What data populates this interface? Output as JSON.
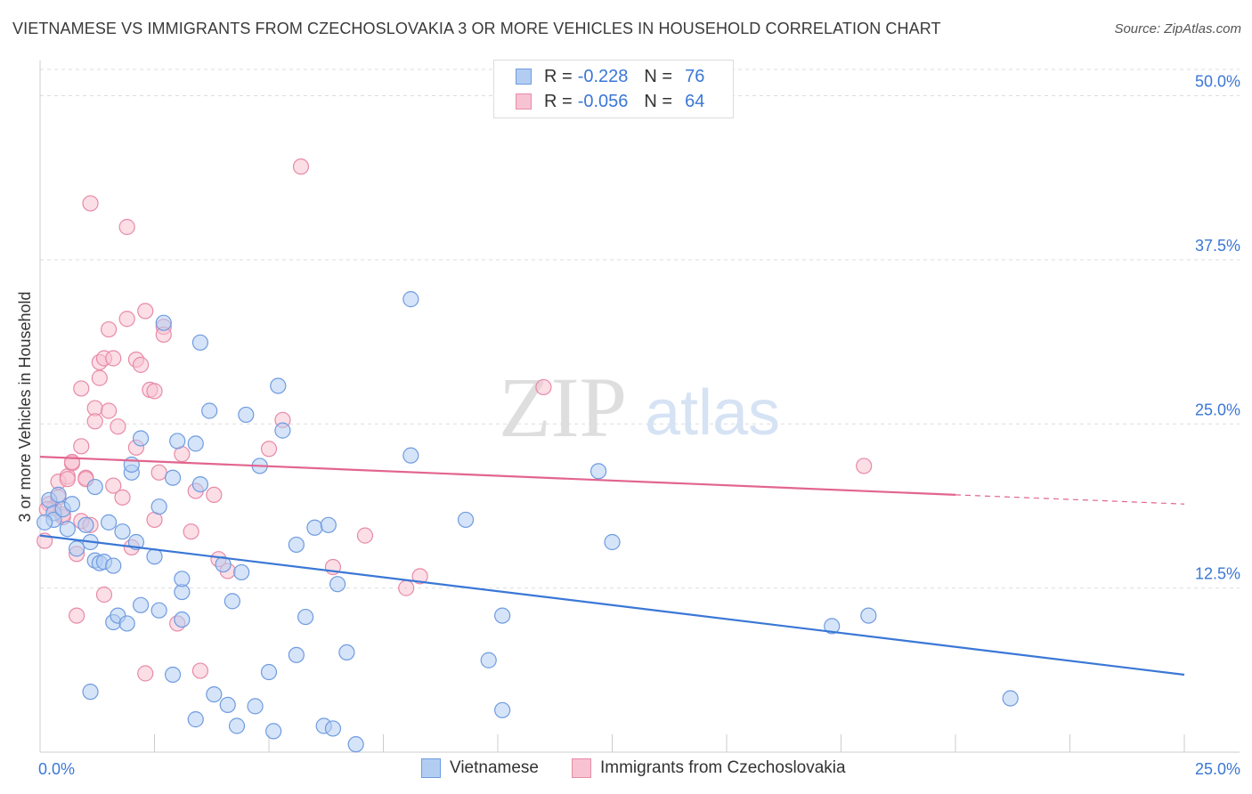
{
  "title": "VIETNAMESE VS IMMIGRANTS FROM CZECHOSLOVAKIA 3 OR MORE VEHICLES IN HOUSEHOLD CORRELATION CHART",
  "source": "Source: ZipAtlas.com",
  "watermark": {
    "zip": "ZIP",
    "atlas": "atlas"
  },
  "legend": {
    "rows": [
      {
        "r_label": "R =",
        "r_value": "-0.228",
        "n_label": "N =",
        "n_value": "76"
      },
      {
        "r_label": "R =",
        "r_value": "-0.056",
        "n_label": "N =",
        "n_value": "64"
      }
    ]
  },
  "colors": {
    "blue": "#3a77d6",
    "blue_fill": "#b3cdf2",
    "pink": "#e2658f",
    "pink_fill": "#f7c3d2",
    "grid": "#dddddd",
    "tick_label": "#3a77d6"
  },
  "chart_data": {
    "type": "scatter",
    "title": "VIETNAMESE VS IMMIGRANTS FROM CZECHOSLOVAKIA 3 OR MORE VEHICLES IN HOUSEHOLD CORRELATION CHART",
    "xlabel": "",
    "ylabel": "3 or more Vehicles in Household",
    "xlim": [
      0,
      25
    ],
    "ylim": [
      0,
      52
    ],
    "x_tick_labels": [
      "0.0%",
      "25.0%"
    ],
    "y_ticks": [
      12.5,
      25.0,
      37.5,
      50.0
    ],
    "y_tick_labels": [
      "12.5%",
      "25.0%",
      "37.5%",
      "50.0%"
    ],
    "series": [
      {
        "name": "Vietnamese",
        "color": "#3a77d6",
        "r": -0.228,
        "n": 76,
        "trend": {
          "x0": 0,
          "y0": 16.5,
          "x1": 25,
          "y1": 5.9
        },
        "points": [
          [
            0.2,
            19.2
          ],
          [
            0.3,
            18.2
          ],
          [
            0.3,
            17.7
          ],
          [
            0.4,
            19.6
          ],
          [
            0.5,
            18.5
          ],
          [
            0.6,
            17.0
          ],
          [
            0.7,
            18.9
          ],
          [
            0.8,
            15.5
          ],
          [
            1.0,
            17.3
          ],
          [
            1.1,
            4.6
          ],
          [
            1.1,
            16.0
          ],
          [
            1.2,
            14.6
          ],
          [
            1.2,
            20.2
          ],
          [
            1.3,
            14.4
          ],
          [
            1.4,
            14.5
          ],
          [
            1.5,
            17.5
          ],
          [
            1.6,
            14.2
          ],
          [
            1.6,
            9.9
          ],
          [
            1.7,
            10.4
          ],
          [
            1.8,
            16.8
          ],
          [
            1.9,
            9.8
          ],
          [
            2.0,
            21.3
          ],
          [
            2.0,
            21.9
          ],
          [
            2.1,
            16.0
          ],
          [
            2.2,
            11.2
          ],
          [
            2.2,
            23.9
          ],
          [
            2.5,
            14.9
          ],
          [
            2.6,
            10.8
          ],
          [
            2.6,
            18.7
          ],
          [
            2.7,
            32.7
          ],
          [
            2.9,
            5.9
          ],
          [
            2.9,
            20.9
          ],
          [
            3.0,
            23.7
          ],
          [
            3.1,
            12.2
          ],
          [
            3.1,
            10.1
          ],
          [
            3.1,
            13.2
          ],
          [
            3.4,
            2.5
          ],
          [
            3.4,
            23.5
          ],
          [
            3.5,
            20.4
          ],
          [
            3.5,
            31.2
          ],
          [
            3.7,
            26.0
          ],
          [
            3.8,
            4.4
          ],
          [
            4.0,
            14.3
          ],
          [
            4.1,
            3.6
          ],
          [
            4.2,
            11.5
          ],
          [
            4.3,
            2.0
          ],
          [
            4.4,
            13.7
          ],
          [
            4.5,
            25.7
          ],
          [
            4.7,
            3.5
          ],
          [
            4.8,
            21.8
          ],
          [
            5.0,
            6.1
          ],
          [
            5.1,
            1.6
          ],
          [
            5.2,
            27.9
          ],
          [
            5.3,
            24.5
          ],
          [
            5.6,
            7.4
          ],
          [
            5.6,
            15.8
          ],
          [
            5.8,
            10.3
          ],
          [
            6.0,
            17.1
          ],
          [
            6.2,
            2.0
          ],
          [
            6.3,
            17.3
          ],
          [
            6.4,
            1.8
          ],
          [
            6.5,
            12.8
          ],
          [
            6.7,
            7.6
          ],
          [
            6.9,
            0.6
          ],
          [
            8.1,
            34.5
          ],
          [
            8.1,
            22.6
          ],
          [
            9.3,
            17.7
          ],
          [
            9.8,
            7.0
          ],
          [
            10.1,
            10.4
          ],
          [
            10.1,
            3.2
          ],
          [
            12.2,
            21.4
          ],
          [
            12.5,
            16.0
          ],
          [
            17.3,
            9.6
          ],
          [
            18.1,
            10.4
          ],
          [
            21.2,
            4.1
          ],
          [
            0.1,
            17.5
          ]
        ]
      },
      {
        "name": "Immigrants from Czechoslovakia",
        "color": "#e2658f",
        "r": -0.056,
        "n": 64,
        "trend": {
          "x0": 0,
          "y0": 22.5,
          "x1": 20.0,
          "y1": 19.6,
          "dash_x1": 25,
          "dash_y1": 18.9
        },
        "points": [
          [
            0.1,
            16.1
          ],
          [
            0.2,
            18.9
          ],
          [
            0.3,
            18.6
          ],
          [
            0.4,
            20.6
          ],
          [
            0.4,
            19.4
          ],
          [
            0.5,
            17.9
          ],
          [
            0.5,
            18.1
          ],
          [
            0.6,
            21.0
          ],
          [
            0.6,
            20.8
          ],
          [
            0.7,
            22.0
          ],
          [
            0.7,
            22.1
          ],
          [
            0.8,
            15.1
          ],
          [
            0.8,
            10.4
          ],
          [
            0.9,
            23.3
          ],
          [
            0.9,
            27.7
          ],
          [
            0.9,
            17.6
          ],
          [
            1.0,
            20.9
          ],
          [
            1.0,
            20.8
          ],
          [
            1.1,
            17.3
          ],
          [
            1.1,
            41.8
          ],
          [
            1.2,
            26.2
          ],
          [
            1.2,
            25.2
          ],
          [
            1.3,
            28.5
          ],
          [
            1.3,
            29.7
          ],
          [
            1.4,
            30.0
          ],
          [
            1.4,
            12.0
          ],
          [
            1.5,
            26.0
          ],
          [
            1.5,
            32.2
          ],
          [
            1.6,
            30.0
          ],
          [
            1.6,
            20.3
          ],
          [
            1.7,
            24.8
          ],
          [
            1.8,
            19.4
          ],
          [
            1.9,
            33.0
          ],
          [
            1.9,
            40.0
          ],
          [
            2.0,
            15.6
          ],
          [
            2.1,
            29.9
          ],
          [
            2.1,
            23.2
          ],
          [
            2.2,
            29.5
          ],
          [
            2.3,
            6.0
          ],
          [
            2.3,
            33.6
          ],
          [
            2.4,
            27.6
          ],
          [
            2.5,
            27.5
          ],
          [
            2.5,
            17.7
          ],
          [
            2.6,
            21.3
          ],
          [
            2.7,
            32.4
          ],
          [
            2.7,
            31.8
          ],
          [
            3.0,
            9.8
          ],
          [
            3.1,
            22.7
          ],
          [
            3.3,
            16.8
          ],
          [
            3.4,
            19.9
          ],
          [
            3.5,
            6.2
          ],
          [
            3.8,
            19.6
          ],
          [
            3.9,
            14.7
          ],
          [
            4.1,
            13.8
          ],
          [
            5.0,
            23.1
          ],
          [
            5.3,
            25.3
          ],
          [
            5.7,
            44.6
          ],
          [
            6.4,
            14.1
          ],
          [
            7.1,
            16.5
          ],
          [
            8.0,
            12.5
          ],
          [
            8.3,
            13.4
          ],
          [
            11.0,
            27.8
          ],
          [
            18.0,
            21.8
          ],
          [
            0.15,
            18.5
          ]
        ]
      }
    ]
  }
}
